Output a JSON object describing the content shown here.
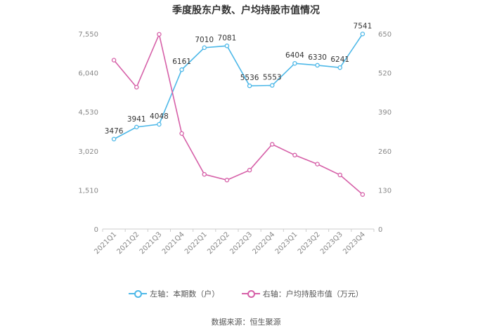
{
  "chart_data": {
    "type": "line",
    "title": "季度股东户数、户均持股市值情况",
    "categories": [
      "2021Q1",
      "2021Q2",
      "2021Q3",
      "2021Q4",
      "2022Q1",
      "2022Q2",
      "2022Q3",
      "2022Q4",
      "2023Q1",
      "2023Q2",
      "2023Q3",
      "2023Q4"
    ],
    "left_axis": {
      "ticks": [
        "0",
        "1,510",
        "3,020",
        "4,530",
        "6,040",
        "7,550"
      ],
      "ylim": [
        0,
        7550
      ]
    },
    "right_axis": {
      "ticks": [
        "0",
        "130",
        "260",
        "390",
        "520",
        "650"
      ],
      "ylim": [
        0,
        650
      ]
    },
    "series": [
      {
        "name": "左轴：本期数（户）",
        "axis": "left",
        "color": "#4db8e8",
        "values": [
          3476,
          3941,
          4048,
          6161,
          7010,
          7081,
          5536,
          5553,
          6404,
          6330,
          6241,
          7541
        ],
        "labels": [
          "3476",
          "3941",
          "4048",
          "6161",
          "7010",
          "7081",
          "5536",
          "5553",
          "6404",
          "6330",
          "6241",
          "7541"
        ]
      },
      {
        "name": "右轴：户均持股市值（万元）",
        "axis": "right",
        "color": "#d660a8",
        "values": [
          562,
          472,
          648,
          318,
          182,
          163,
          196,
          282,
          246,
          216,
          180,
          115
        ]
      }
    ],
    "grid": false,
    "legend_position": "bottom"
  },
  "source_text": "数据来源：恒生聚源"
}
